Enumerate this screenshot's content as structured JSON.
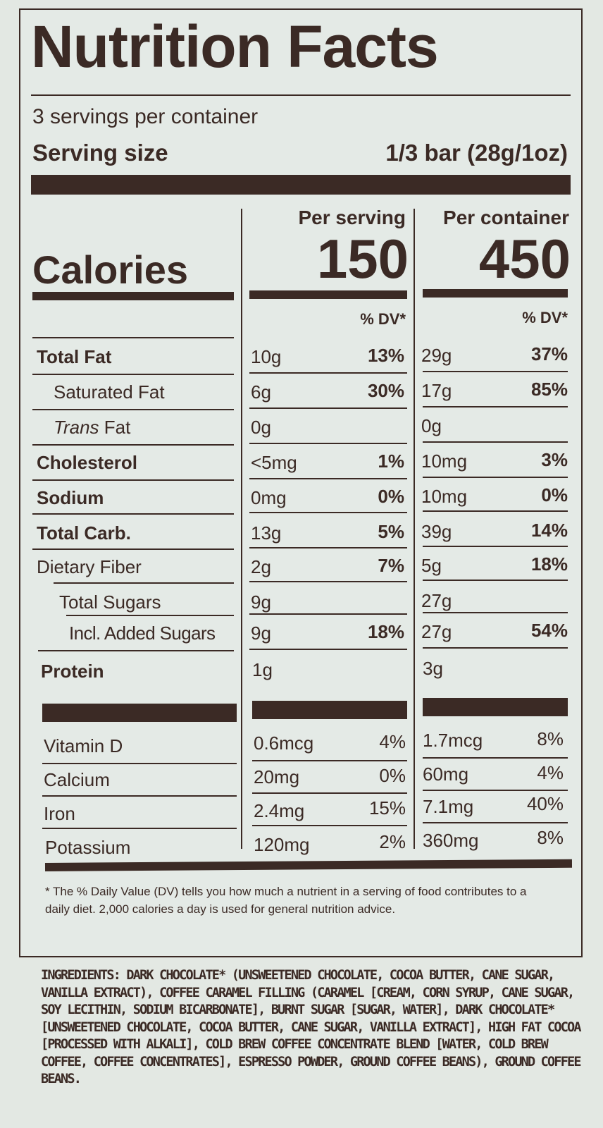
{
  "title": "Nutrition Facts",
  "servings_per_container": "3 servings per container",
  "serving_size_label": "Serving size",
  "serving_size_value": "1/3 bar (28g/1oz)",
  "per_serving_header": "Per serving",
  "per_container_header": "Per container",
  "calories_label": "Calories",
  "calories_per_serving": "150",
  "calories_per_container": "450",
  "dv_header": "% DV*",
  "nutrients": [
    {
      "label": "Total Fat",
      "serving_amount": "10g",
      "serving_dv": "13%",
      "container_amount": "29g",
      "container_dv": "37%"
    },
    {
      "label": "Saturated Fat",
      "serving_amount": "6g",
      "serving_dv": "30%",
      "container_amount": "17g",
      "container_dv": "85%"
    },
    {
      "label_prefix": "Trans",
      "label_suffix": " Fat",
      "serving_amount": "0g",
      "serving_dv": "",
      "container_amount": "0g",
      "container_dv": ""
    },
    {
      "label": "Cholesterol",
      "serving_amount": "<5mg",
      "serving_dv": "1%",
      "container_amount": "10mg",
      "container_dv": "3%"
    },
    {
      "label": "Sodium",
      "serving_amount": "0mg",
      "serving_dv": "0%",
      "container_amount": "10mg",
      "container_dv": "0%"
    },
    {
      "label": "Total Carb.",
      "serving_amount": "13g",
      "serving_dv": "5%",
      "container_amount": "39g",
      "container_dv": "14%"
    },
    {
      "label": "Dietary Fiber",
      "serving_amount": "2g",
      "serving_dv": "7%",
      "container_amount": "5g",
      "container_dv": "18%"
    },
    {
      "label": "Total Sugars",
      "serving_amount": "9g",
      "serving_dv": "",
      "container_amount": "27g",
      "container_dv": ""
    },
    {
      "label": "Incl. Added Sugars",
      "serving_amount": "9g",
      "serving_dv": "18%",
      "container_amount": "27g",
      "container_dv": "54%"
    },
    {
      "label": "Protein",
      "serving_amount": "1g",
      "serving_dv": "",
      "container_amount": "3g",
      "container_dv": ""
    }
  ],
  "vitamins": [
    {
      "label": "Vitamin D",
      "serving_amount": "0.6mcg",
      "serving_dv": "4%",
      "container_amount": "1.7mcg",
      "container_dv": "8%"
    },
    {
      "label": "Calcium",
      "serving_amount": "20mg",
      "serving_dv": "0%",
      "container_amount": "60mg",
      "container_dv": "4%"
    },
    {
      "label": "Iron",
      "serving_amount": "2.4mg",
      "serving_dv": "15%",
      "container_amount": "7.1mg",
      "container_dv": "40%"
    },
    {
      "label": "Potassium",
      "serving_amount": "120mg",
      "serving_dv": "2%",
      "container_amount": "360mg",
      "container_dv": "8%"
    }
  ],
  "footnote": "* The % Daily Value (DV) tells you how much a nutrient in a serving of food contributes to a daily diet. 2,000 calories a day is used for general nutrition advice.",
  "ingredients_label": "INGREDIENTS:",
  "ingredients_text": " DARK CHOCOLATE* (UNSWEETENED CHOCOLATE, COCOA BUTTER, CANE SUGAR, VANILLA EXTRACT), COFFEE CARAMEL FILLING (CARAMEL [CREAM, CORN SYRUP, CANE SUGAR, SOY LECITHIN, SODIUM BICARBONATE], BURNT SUGAR [SUGAR, WATER], DARK CHOCOLATE* [UNSWEETENED CHOCOLATE, COCOA BUTTER, CANE SUGAR, VANILLA EXTRACT], HIGH FAT COCOA [PROCESSED WITH ALKALI], COLD BREW COFFEE CONCENTRATE BLEND [WATER, COLD BREW COFFEE, COFFEE CONCENTRATES], ESPRESSO POWDER, GROUND COFFEE BEANS), GROUND COFFEE BEANS."
}
